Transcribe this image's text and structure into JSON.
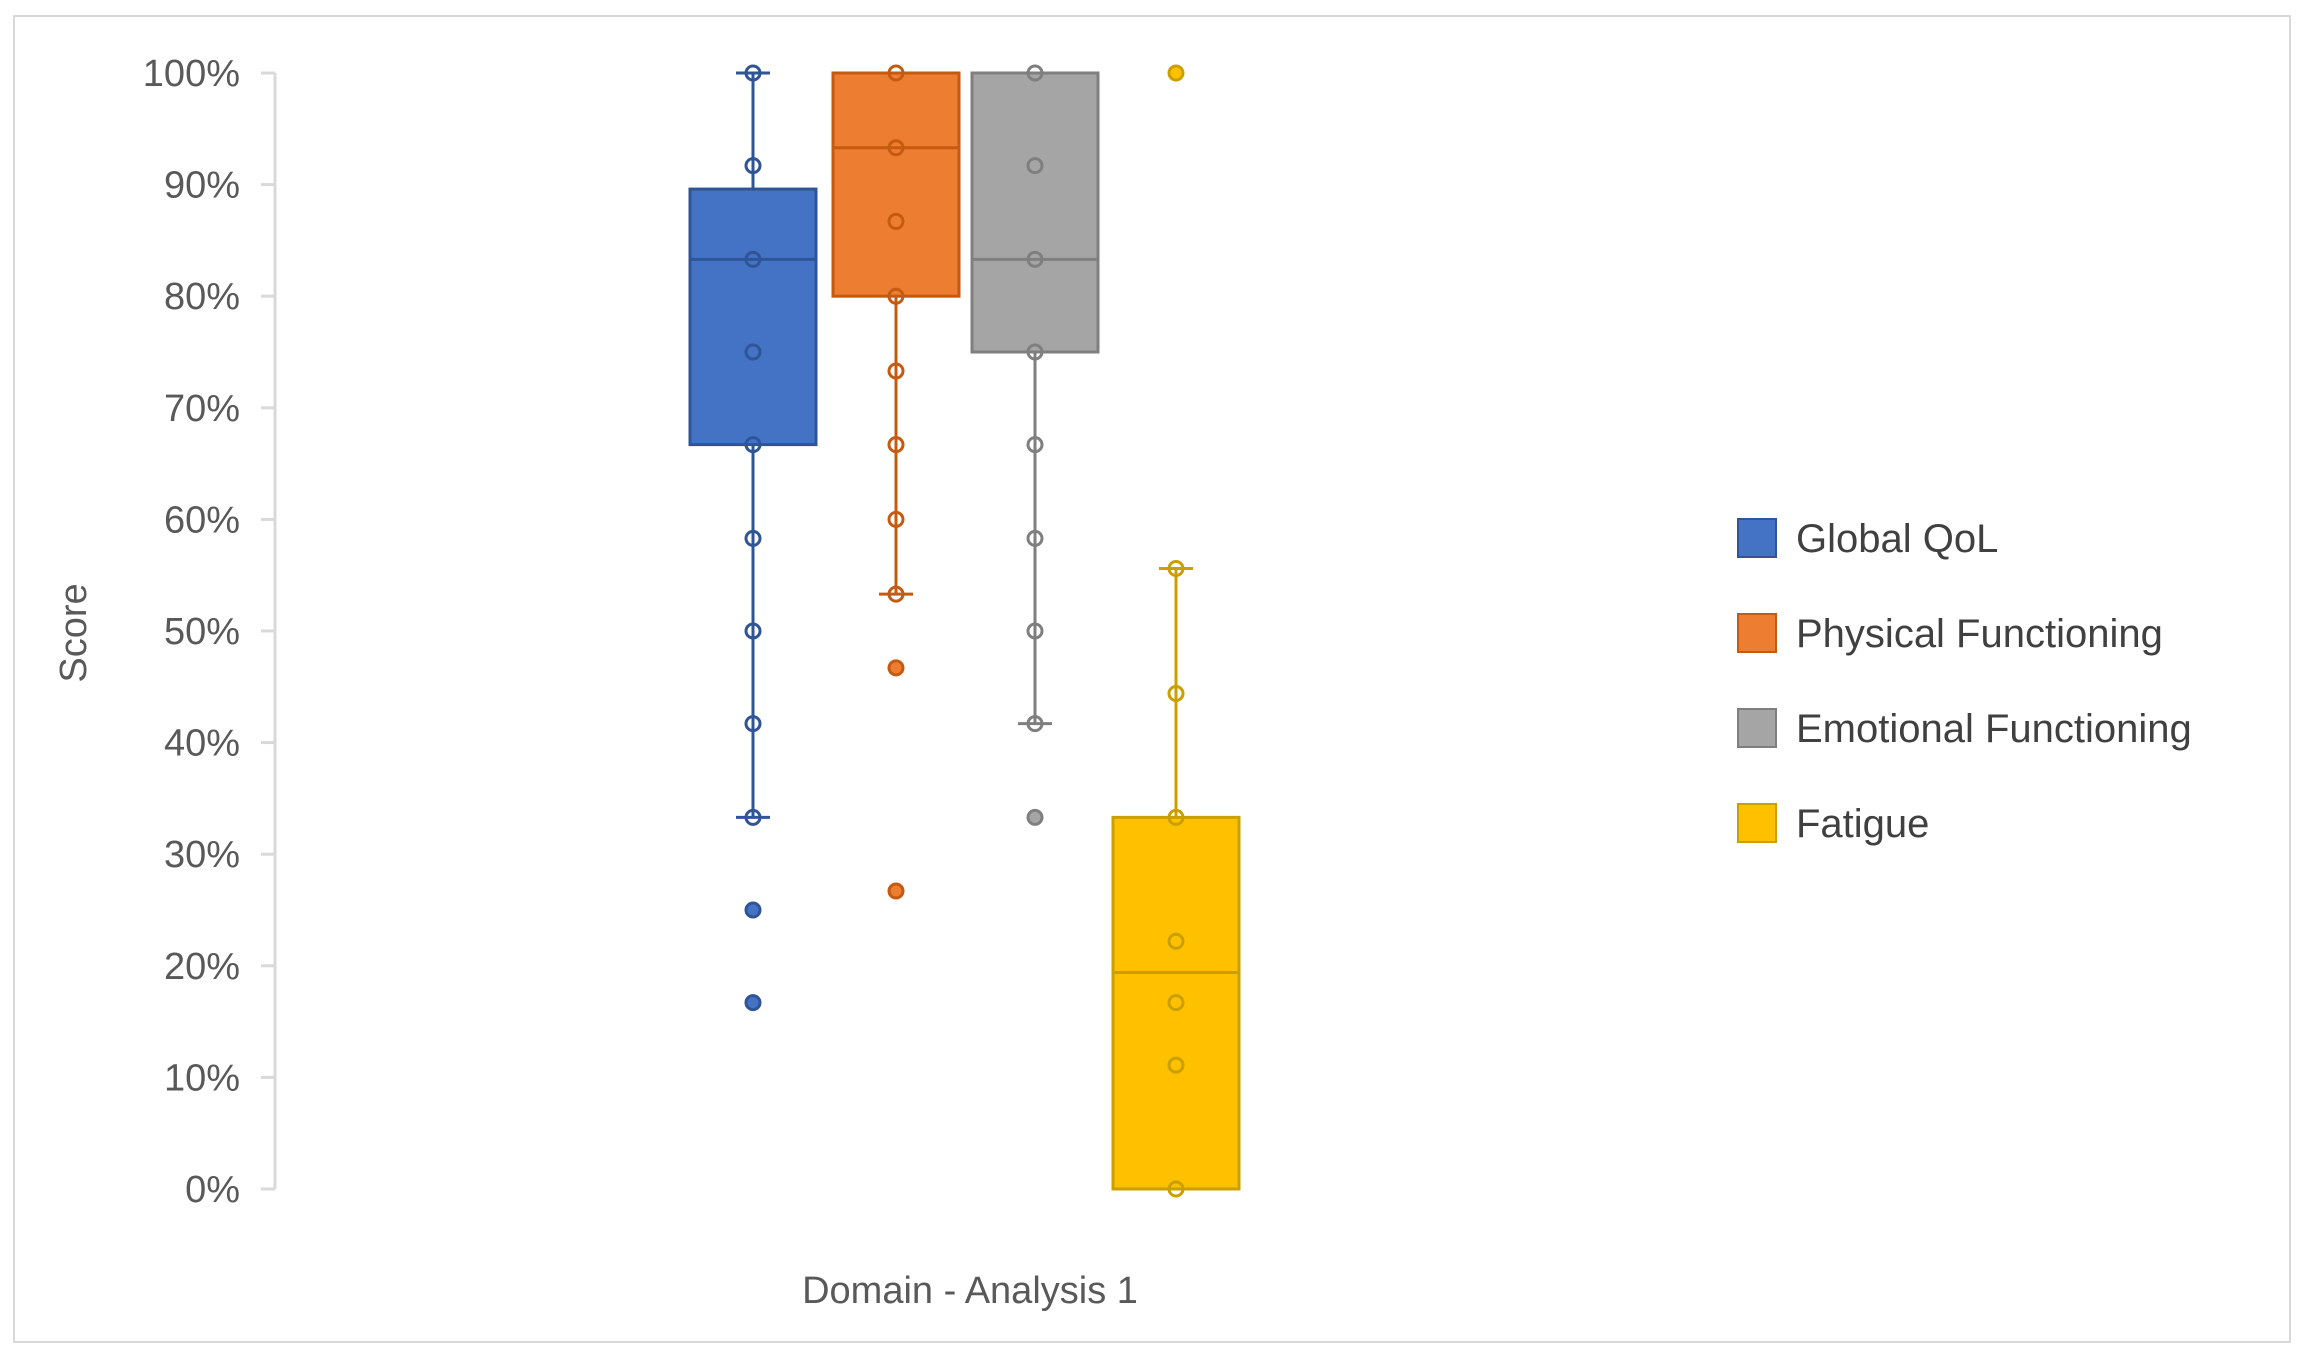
{
  "chart_data": {
    "type": "box",
    "title": "",
    "xlabel": "Domain - Analysis 1",
    "ylabel": "Score",
    "ylim": [
      0,
      100
    ],
    "y_unit": "%",
    "y_ticks": [
      0,
      10,
      20,
      30,
      40,
      50,
      60,
      70,
      80,
      90,
      100
    ],
    "y_tick_labels": [
      "0%",
      "10%",
      "20%",
      "30%",
      "40%",
      "50%",
      "60%",
      "70%",
      "80%",
      "90%",
      "100%"
    ],
    "grid": false,
    "legend_position": "right",
    "categories": [
      "Domain - Analysis 1"
    ],
    "series": [
      {
        "name": "Global QoL",
        "color": "#4472C4",
        "edge_color": "#2F5597",
        "whisker_low": 33.3,
        "q1": 66.7,
        "median": 83.3,
        "q3": 89.6,
        "whisker_high": 100,
        "points": [
          100,
          91.7,
          83.3,
          75,
          66.7,
          58.3,
          50,
          41.7,
          33.3
        ],
        "outliers": [
          25,
          16.7
        ]
      },
      {
        "name": "Physical Functioning",
        "color": "#ED7D31",
        "edge_color": "#C55A11",
        "whisker_low": 53.3,
        "q1": 80,
        "median": 93.3,
        "q3": 100,
        "whisker_high": 100,
        "points": [
          100,
          93.3,
          86.7,
          80,
          73.3,
          66.7,
          60,
          53.3
        ],
        "outliers": [
          46.7,
          26.7
        ]
      },
      {
        "name": "Emotional Functioning",
        "color": "#A5A5A5",
        "edge_color": "#7F7F7F",
        "whisker_low": 41.7,
        "q1": 75,
        "median": 83.3,
        "q3": 100,
        "whisker_high": 100,
        "points": [
          100,
          91.7,
          83.3,
          75,
          66.7,
          58.3,
          50,
          41.7
        ],
        "outliers": [
          33.3
        ]
      },
      {
        "name": "Fatigue",
        "color": "#FFC000",
        "edge_color": "#C9A000",
        "whisker_low": 0,
        "q1": 0,
        "median": 19.4,
        "q3": 33.3,
        "whisker_high": 55.6,
        "points": [
          55.6,
          44.4,
          33.3,
          22.2,
          16.7,
          11.1,
          0
        ],
        "outliers": [
          100
        ]
      }
    ]
  }
}
